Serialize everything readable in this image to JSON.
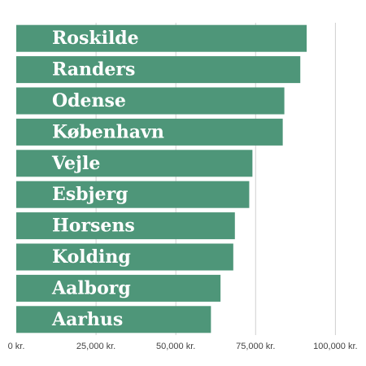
{
  "chart_data": {
    "type": "bar",
    "orientation": "horizontal",
    "title": "",
    "xlabel": "",
    "ylabel": "",
    "categories": [
      "Roskilde",
      "Randers",
      "Odense",
      "København",
      "Vejle",
      "Esbjerg",
      "Horsens",
      "Kolding",
      "Aalborg",
      "Aarhus"
    ],
    "values": [
      91000,
      89000,
      84000,
      83500,
      74000,
      73000,
      68500,
      68000,
      64000,
      61000
    ],
    "xlim": [
      0,
      105000
    ],
    "xticks": [
      0,
      25000,
      50000,
      75000,
      100000
    ],
    "xtick_labels": [
      "0 kr.",
      "25,000 kr.",
      "50,000 kr.",
      "75,000 kr.",
      "100,000 kr."
    ],
    "grid": true,
    "bar_color": "#4e9679"
  }
}
